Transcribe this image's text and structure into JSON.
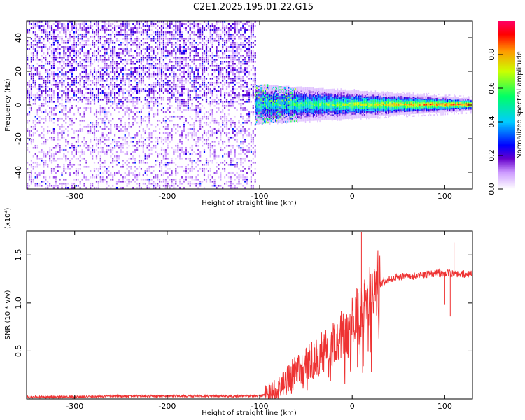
{
  "title": "C2E1.2025.195.01.22.G15",
  "chart_data": [
    {
      "type": "heatmap",
      "title": "C2E1.2025.195.01.22.G15",
      "xlabel": "Height of straight line (km)",
      "ylabel": "Frequency (Hz)",
      "xlim": [
        -352,
        130
      ],
      "ylim": [
        -50,
        50
      ],
      "xticks": [
        -300,
        -200,
        -100,
        0,
        100
      ],
      "yticks": [
        -40,
        -20,
        0,
        20,
        40
      ],
      "colorbar": {
        "label": "Normalized spectral amplitude",
        "range": [
          0,
          1
        ],
        "ticks": [
          0.0,
          0.2,
          0.4,
          0.6,
          0.8
        ],
        "colormap": [
          "#ffffff",
          "#6600cc",
          "#0000ff",
          "#00ccff",
          "#00ff66",
          "#ccff00",
          "#ff9900",
          "#ff0000",
          "#ff0066"
        ]
      },
      "regions": [
        {
          "x_range": [
            -352,
            -105
          ],
          "f_range": [
            -50,
            50
          ],
          "amplitude": [
            0.05,
            0.25
          ],
          "pattern": "noise, denser above 0 Hz"
        },
        {
          "x_range": [
            -105,
            130
          ],
          "f_center": 0,
          "f_width": [
            10,
            3
          ],
          "amplitude": [
            0.3,
            0.95
          ],
          "pattern": "narrow band near 0 Hz"
        }
      ]
    },
    {
      "type": "line",
      "xlabel": "Height of straight line (km)",
      "ylabel": "SNR (10 * v/v)",
      "y_multiplier": "(x10⁴)",
      "xlim": [
        -352,
        130
      ],
      "ylim": [
        0,
        1.75
      ],
      "xticks": [
        -300,
        -200,
        -100,
        0,
        100
      ],
      "yticks": [
        0.5,
        1.0,
        1.5
      ],
      "color": "#ee3333",
      "series": [
        {
          "x": [
            -352,
            -300,
            -250,
            -200,
            -150,
            -100,
            -90,
            -80,
            -75,
            -70,
            -60,
            -50,
            -40,
            -30,
            -20,
            -10,
            0,
            5,
            10,
            15,
            20,
            30,
            40,
            50,
            60,
            70,
            80,
            90,
            100,
            105,
            110,
            120,
            130
          ],
          "values": [
            0.02,
            0.02,
            0.03,
            0.03,
            0.03,
            0.03,
            0.06,
            0.1,
            0.15,
            0.22,
            0.3,
            0.36,
            0.42,
            0.5,
            0.58,
            0.68,
            0.8,
            0.85,
            0.92,
            1.0,
            1.08,
            1.2,
            1.25,
            1.27,
            1.28,
            1.28,
            1.3,
            1.31,
            1.31,
            1.31,
            1.3,
            1.3,
            1.3
          ]
        }
      ],
      "spikes": [
        {
          "x": 10,
          "value": 1.74
        },
        {
          "x": 13,
          "value": 1.2
        },
        {
          "x": 100,
          "value": 0.98
        },
        {
          "x": 106,
          "value": 0.86
        },
        {
          "x": 110,
          "value": 1.63
        }
      ]
    }
  ]
}
